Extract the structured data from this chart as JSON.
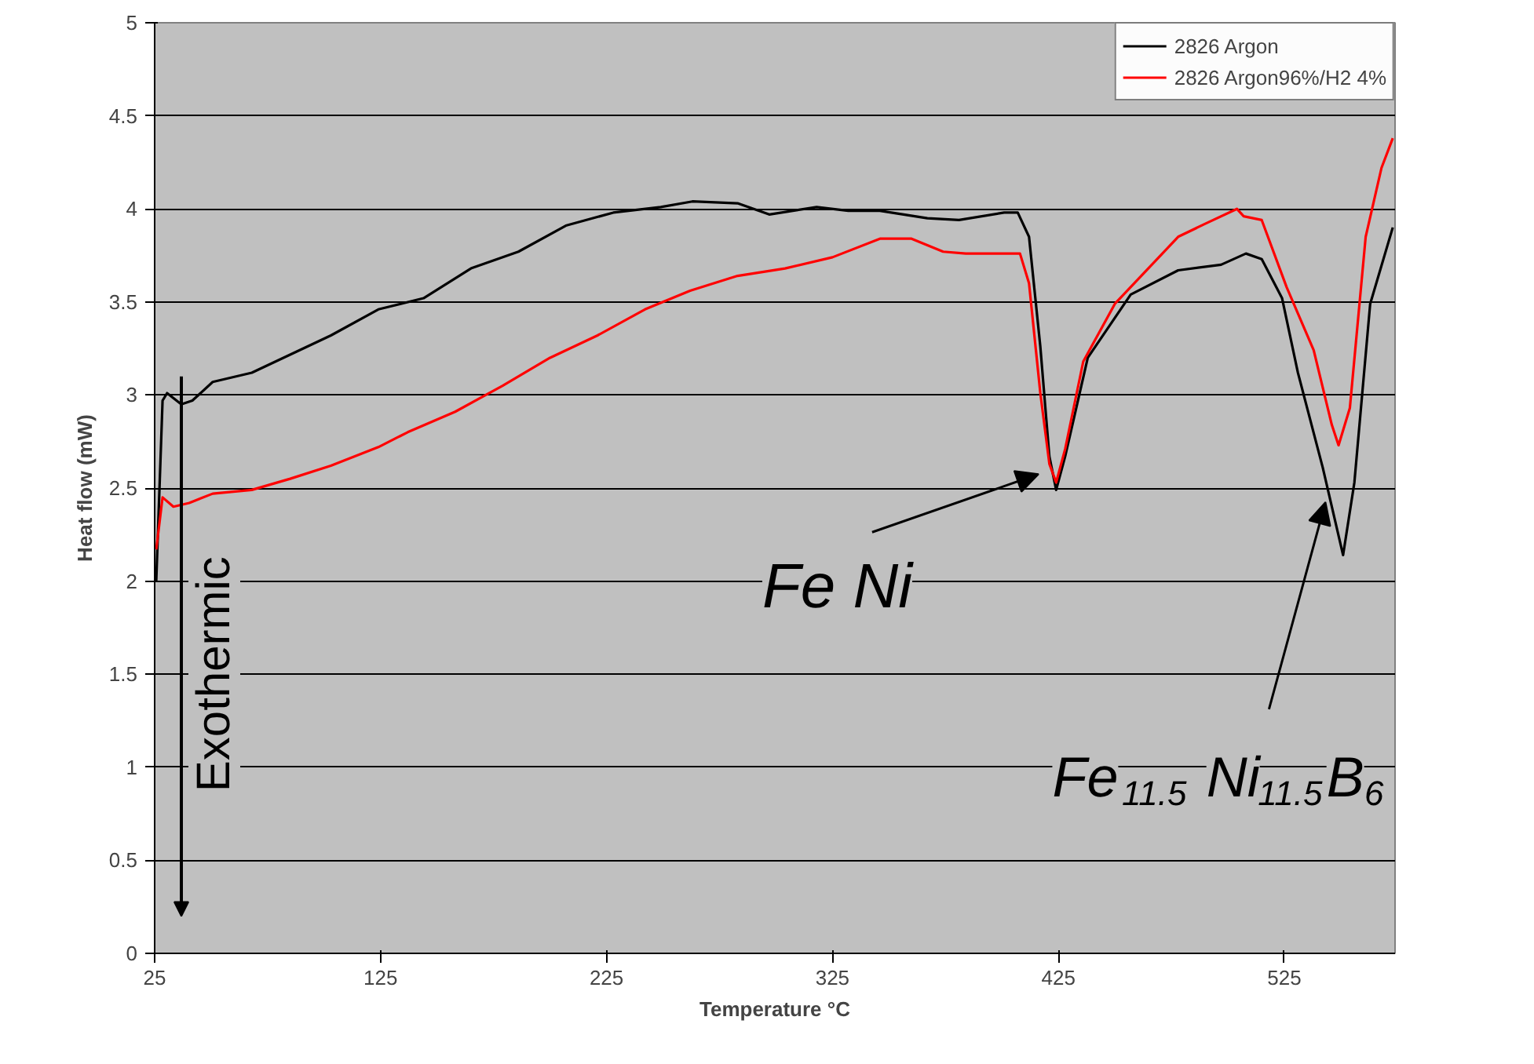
{
  "chart_data": {
    "type": "line",
    "xlabel": "Temperature °C",
    "ylabel": "Heat flow (mW)",
    "xlim": [
      25,
      574
    ],
    "xticks": [
      25,
      125,
      225,
      325,
      425,
      525
    ],
    "ylim": [
      0,
      5
    ],
    "yticks": [
      0,
      0.5,
      1,
      1.5,
      2,
      2.5,
      3,
      3.5,
      4,
      4.5,
      5
    ],
    "grid": "y",
    "legend": "top right",
    "line_style": "solid",
    "marker": "none",
    "annotations": [
      "Exothermic",
      {
        "text": "Fe Ni",
        "x": 419,
        "y": 2.6
      },
      {
        "text": "Fe$_{11.5}$ Ni$_{11.5}$B$_{6}$",
        "x": 546,
        "y": 2.45
      }
    ],
    "series": [
      {
        "name": "2826 Argon",
        "color": "#000000",
        "x": [
          25.7,
          28.5,
          30.5,
          36.8,
          41.7,
          50.7,
          68,
          82,
          103,
          124,
          144,
          165,
          186,
          207,
          228,
          249,
          263,
          283,
          297,
          318,
          332,
          346,
          367,
          381,
          401,
          407,
          412,
          417,
          421,
          424,
          428,
          438,
          457,
          478,
          497,
          508,
          515,
          524,
          531,
          542,
          551,
          556,
          563,
          573
        ],
        "values": [
          2.0,
          2.97,
          3.01,
          2.95,
          2.97,
          3.07,
          3.12,
          3.2,
          3.32,
          3.46,
          3.52,
          3.68,
          3.77,
          3.91,
          3.98,
          4.01,
          4.04,
          4.03,
          3.97,
          4.01,
          3.99,
          3.99,
          3.95,
          3.94,
          3.98,
          3.98,
          3.85,
          3.26,
          2.67,
          2.49,
          2.67,
          3.2,
          3.54,
          3.67,
          3.7,
          3.76,
          3.73,
          3.52,
          3.12,
          2.61,
          2.14,
          2.53,
          3.49,
          3.9
        ]
      },
      {
        "name": "2826 Argon96%/H2 4%",
        "color": "#ff0000",
        "x": [
          25.7,
          28.5,
          33.3,
          40.3,
          50.7,
          68,
          85,
          103,
          124,
          137,
          158,
          179,
          200,
          221,
          242,
          262,
          283,
          304,
          325,
          346,
          360,
          374,
          384,
          408,
          412,
          417,
          421,
          424,
          428,
          436,
          450,
          478,
          490,
          504,
          507,
          515,
          526,
          538,
          546,
          549,
          554,
          561,
          568,
          573
        ],
        "values": [
          2.17,
          2.45,
          2.4,
          2.42,
          2.47,
          2.49,
          2.55,
          2.62,
          2.72,
          2.8,
          2.91,
          3.05,
          3.2,
          3.32,
          3.46,
          3.56,
          3.64,
          3.68,
          3.74,
          3.84,
          3.84,
          3.77,
          3.76,
          3.76,
          3.6,
          3.01,
          2.63,
          2.53,
          2.71,
          3.18,
          3.49,
          3.85,
          3.92,
          4.0,
          3.96,
          3.94,
          3.58,
          3.24,
          2.84,
          2.73,
          2.93,
          3.85,
          4.22,
          4.38
        ]
      }
    ]
  }
}
